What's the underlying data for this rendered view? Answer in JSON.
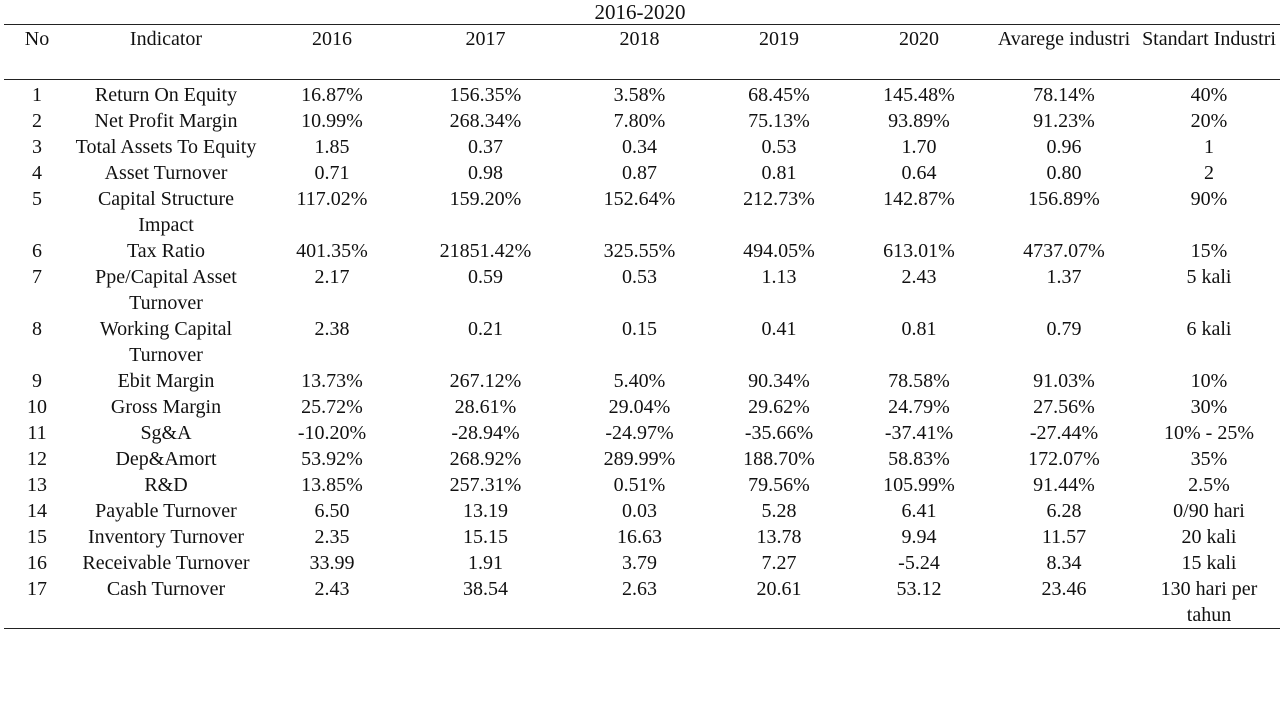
{
  "caption": "2016-2020",
  "headers": {
    "no": "No",
    "indicator": "Indicator",
    "y2016": "2016",
    "y2017": "2017",
    "y2018": "2018",
    "y2019": "2019",
    "y2020": "2020",
    "average": "Avarege industri",
    "standard": "Standart Industri"
  },
  "rows": [
    [
      "1",
      "Return On Equity",
      "16.87%",
      "156.35%",
      "3.58%",
      "68.45%",
      "145.48%",
      "78.14%",
      "40%"
    ],
    [
      "2",
      "Net Profit Margin",
      "10.99%",
      "268.34%",
      "7.80%",
      "75.13%",
      "93.89%",
      "91.23%",
      "20%"
    ],
    [
      "3",
      "Total Assets To Equity",
      "1.85",
      "0.37",
      "0.34",
      "0.53",
      "1.70",
      "0.96",
      "1"
    ],
    [
      "4",
      "Asset Turnover",
      "0.71",
      "0.98",
      "0.87",
      "0.81",
      "0.64",
      "0.80",
      "2"
    ],
    [
      "5",
      "Capital Structure Impact",
      "117.02%",
      "159.20%",
      "152.64%",
      "212.73%",
      "142.87%",
      "156.89%",
      "90%"
    ],
    [
      "6",
      "Tax Ratio",
      "401.35%",
      "21851.42%",
      "325.55%",
      "494.05%",
      "613.01%",
      "4737.07%",
      "15%"
    ],
    [
      "7",
      "Ppe/Capital Asset Turnover",
      "2.17",
      "0.59",
      "0.53",
      "1.13",
      "2.43",
      "1.37",
      "5 kali"
    ],
    [
      "8",
      "Working Capital Turnover",
      "2.38",
      "0.21",
      "0.15",
      "0.41",
      "0.81",
      "0.79",
      "6 kali"
    ],
    [
      "9",
      "Ebit Margin",
      "13.73%",
      "267.12%",
      "5.40%",
      "90.34%",
      "78.58%",
      "91.03%",
      "10%"
    ],
    [
      "10",
      "Gross Margin",
      "25.72%",
      "28.61%",
      "29.04%",
      "29.62%",
      "24.79%",
      "27.56%",
      "30%"
    ],
    [
      "11",
      "Sg&A",
      "-10.20%",
      "-28.94%",
      "-24.97%",
      "-35.66%",
      "-37.41%",
      "-27.44%",
      "10% - 25%"
    ],
    [
      "12",
      "Dep&Amort",
      "53.92%",
      "268.92%",
      "289.99%",
      "188.70%",
      "58.83%",
      "172.07%",
      "35%"
    ],
    [
      "13",
      "R&D",
      "13.85%",
      "257.31%",
      "0.51%",
      "79.56%",
      "105.99%",
      "91.44%",
      "2.5%"
    ],
    [
      "14",
      "Payable Turnover",
      "6.50",
      "13.19",
      "0.03",
      "5.28",
      "6.41",
      "6.28",
      "0/90 hari"
    ],
    [
      "15",
      "Inventory Turnover",
      "2.35",
      "15.15",
      "16.63",
      "13.78",
      "9.94",
      "11.57",
      "20 kali"
    ],
    [
      "16",
      "Receivable Turnover",
      "33.99",
      "1.91",
      "3.79",
      "7.27",
      "-5.24",
      "8.34",
      "15 kali"
    ],
    [
      "17",
      "Cash Turnover",
      "2.43",
      "38.54",
      "2.63",
      "20.61",
      "53.12",
      "23.46",
      "130 hari per tahun"
    ]
  ]
}
